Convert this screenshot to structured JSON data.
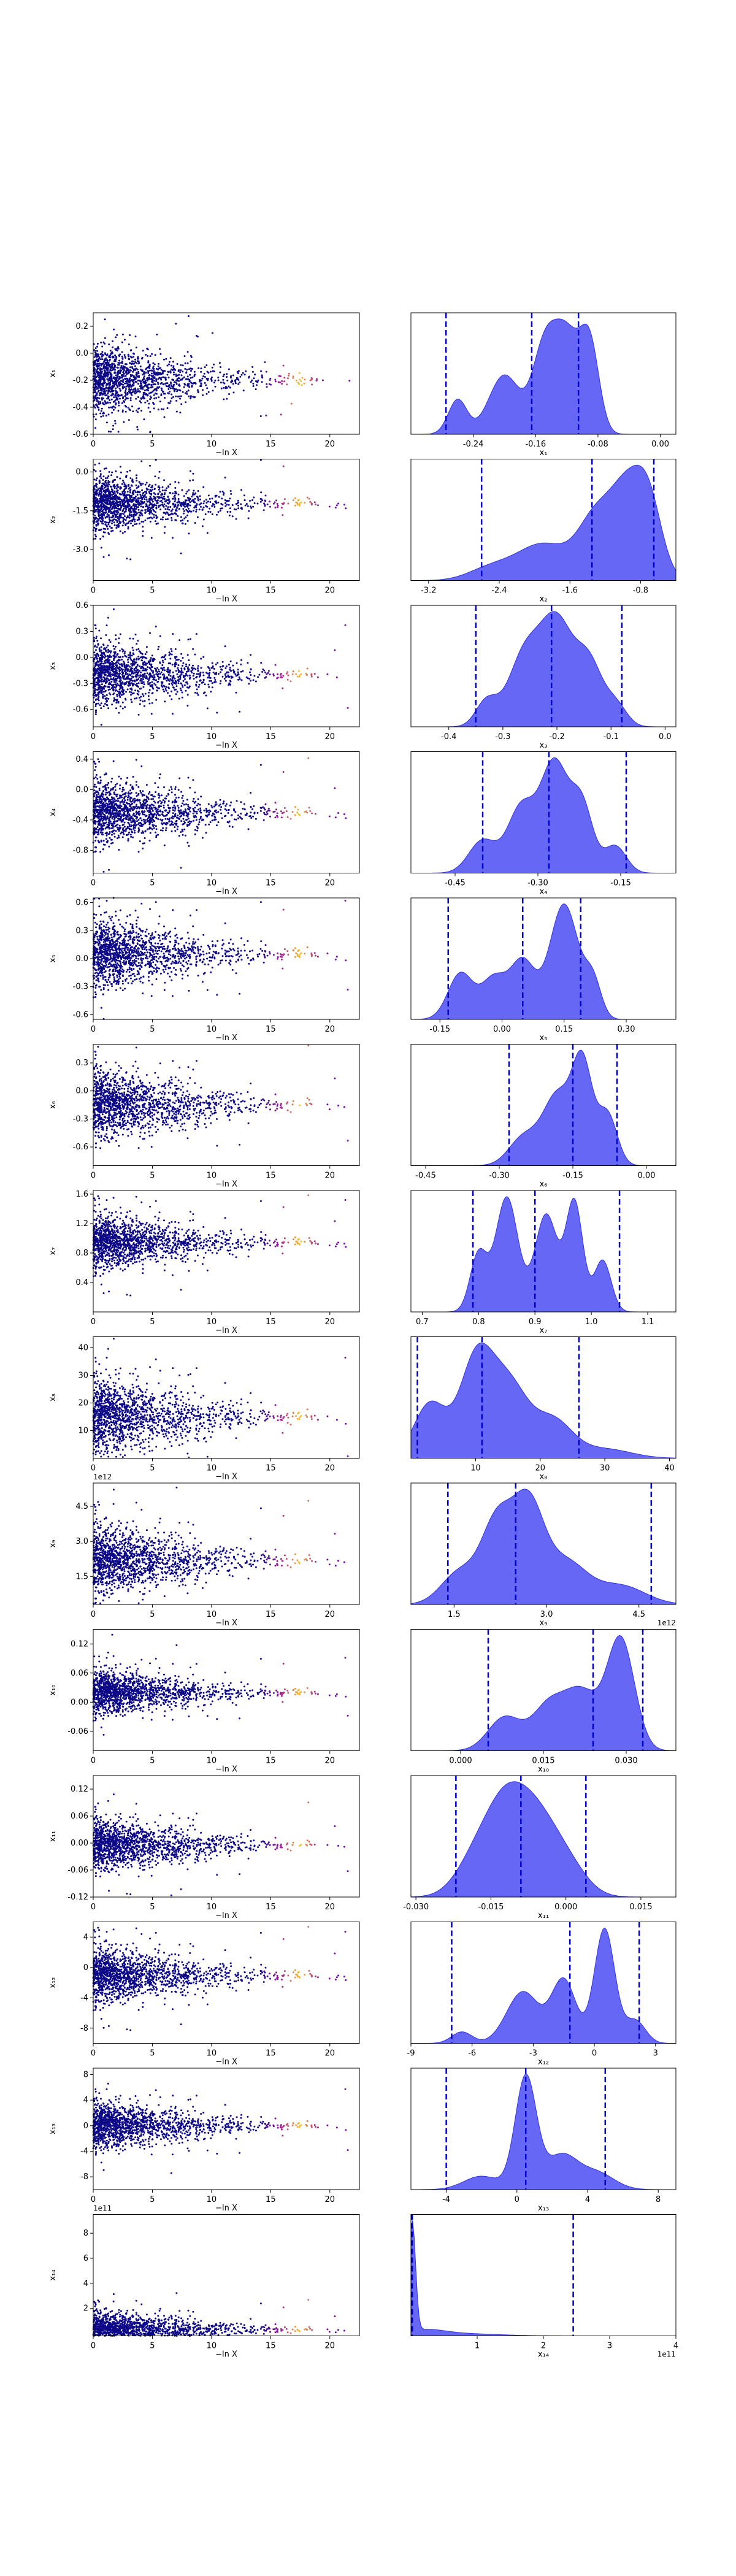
{
  "trace_xlabel": "−ln X",
  "trace_xticks": [
    0,
    5,
    10,
    15,
    20
  ],
  "trace_xlim": [
    0,
    22.5
  ],
  "colors": {
    "hist_fill": "#5a5af5",
    "hist_edge": "#3030e0",
    "quantile_line": "#0000cc",
    "scatter_low": "#0d0887",
    "scatter_mid": "#9c179e",
    "scatter_high": "#fdc527"
  },
  "chart_data": [
    {
      "type": "scatter",
      "param": "x1",
      "ylabel": "x₁",
      "ylim": [
        -0.6,
        0.3
      ],
      "yticks": [
        "0.2",
        "0.0",
        "-0.2",
        "-0.4",
        "-0.6"
      ],
      "ytick_values": [
        0.2,
        0.0,
        -0.2,
        -0.4,
        -0.6
      ],
      "center": -0.2,
      "spread": 0.28,
      "hist_xlim": [
        -0.32,
        0.02
      ],
      "hist_xticks": [
        "-0.24",
        "-0.16",
        "-0.08",
        "0.00"
      ],
      "hist_xtick_values": [
        -0.24,
        -0.16,
        -0.08,
        0.0
      ],
      "hist_xlabel": "x₁",
      "hist_offset": "",
      "trace_offset": "",
      "quantiles": [
        -0.275,
        -0.165,
        -0.105
      ],
      "peaks": [
        [
          -0.26,
          0.35,
          0.012
        ],
        [
          -0.2,
          0.6,
          0.02
        ],
        [
          -0.15,
          0.75,
          0.015
        ],
        [
          -0.12,
          1.0,
          0.018
        ],
        [
          -0.09,
          0.8,
          0.012
        ]
      ]
    },
    {
      "type": "scatter",
      "param": "x2",
      "ylabel": "x₂",
      "ylim": [
        -4.2,
        0.5
      ],
      "yticks": [
        "0.0",
        "-1.5",
        "-3.0"
      ],
      "ytick_values": [
        0.0,
        -1.5,
        -3.0
      ],
      "center": -1.2,
      "spread": 1.2,
      "hist_xlim": [
        -3.4,
        -0.4
      ],
      "hist_xticks": [
        "-3.2",
        "-2.4",
        "-1.6",
        "-0.8"
      ],
      "hist_xtick_values": [
        -3.2,
        -2.4,
        -1.6,
        -0.8
      ],
      "hist_xlabel": "x₂",
      "hist_offset": "",
      "trace_offset": "",
      "quantiles": [
        -2.6,
        -1.35,
        -0.65
      ],
      "peaks": [
        [
          -2.5,
          0.15,
          0.25
        ],
        [
          -1.9,
          0.45,
          0.3
        ],
        [
          -1.3,
          0.75,
          0.2
        ],
        [
          -0.95,
          1.0,
          0.18
        ],
        [
          -0.7,
          0.85,
          0.15
        ]
      ]
    },
    {
      "type": "scatter",
      "param": "x3",
      "ylabel": "x₃",
      "ylim": [
        -0.8,
        0.6
      ],
      "yticks": [
        "0.6",
        "0.3",
        "0.0",
        "-0.3",
        "-0.6"
      ],
      "ytick_values": [
        0.6,
        0.3,
        0.0,
        -0.3,
        -0.6
      ],
      "center": -0.2,
      "spread": 0.4,
      "hist_xlim": [
        -0.47,
        0.02
      ],
      "hist_xticks": [
        "-0.4",
        "-0.3",
        "-0.2",
        "-0.1",
        "0.0"
      ],
      "hist_xtick_values": [
        -0.4,
        -0.3,
        -0.2,
        -0.1,
        0.0
      ],
      "hist_xlabel": "x₃",
      "hist_offset": "",
      "trace_offset": "",
      "quantiles": [
        -0.35,
        -0.21,
        -0.08
      ],
      "peaks": [
        [
          -0.33,
          0.25,
          0.02
        ],
        [
          -0.26,
          0.7,
          0.03
        ],
        [
          -0.2,
          1.0,
          0.03
        ],
        [
          -0.14,
          0.6,
          0.025
        ],
        [
          -0.09,
          0.2,
          0.02
        ]
      ]
    },
    {
      "type": "scatter",
      "param": "x4",
      "ylabel": "x₄",
      "ylim": [
        -1.1,
        0.5
      ],
      "yticks": [
        "0.4",
        "0.0",
        "-0.4",
        "-0.8"
      ],
      "ytick_values": [
        0.4,
        0.0,
        -0.4,
        -0.8
      ],
      "center": -0.3,
      "spread": 0.45,
      "hist_xlim": [
        -0.53,
        -0.05
      ],
      "hist_xticks": [
        "-0.45",
        "-0.30",
        "-0.15"
      ],
      "hist_xtick_values": [
        -0.45,
        -0.3,
        -0.15
      ],
      "hist_xlabel": "x₄",
      "hist_offset": "",
      "trace_offset": "",
      "quantiles": [
        -0.4,
        -0.28,
        -0.14
      ],
      "peaks": [
        [
          -0.4,
          0.3,
          0.025
        ],
        [
          -0.33,
          0.6,
          0.025
        ],
        [
          -0.27,
          1.0,
          0.025
        ],
        [
          -0.22,
          0.6,
          0.02
        ],
        [
          -0.16,
          0.25,
          0.02
        ]
      ]
    },
    {
      "type": "scatter",
      "param": "x5",
      "ylabel": "x₅",
      "ylim": [
        -0.65,
        0.65
      ],
      "yticks": [
        "0.6",
        "0.3",
        "0.0",
        "-0.3",
        "-0.6"
      ],
      "ytick_values": [
        0.6,
        0.3,
        0.0,
        -0.3,
        -0.6
      ],
      "center": 0.05,
      "spread": 0.4,
      "hist_xlim": [
        -0.22,
        0.42
      ],
      "hist_xticks": [
        "-0.15",
        "0.00",
        "0.15",
        "0.30"
      ],
      "hist_xtick_values": [
        -0.15,
        0.0,
        0.15,
        0.3
      ],
      "hist_xlabel": "x₅",
      "hist_offset": "",
      "trace_offset": "",
      "quantiles": [
        -0.13,
        0.05,
        0.19
      ],
      "peaks": [
        [
          -0.1,
          0.4,
          0.03
        ],
        [
          -0.02,
          0.35,
          0.03
        ],
        [
          0.05,
          0.5,
          0.03
        ],
        [
          0.15,
          1.0,
          0.035
        ],
        [
          0.22,
          0.3,
          0.02
        ]
      ]
    },
    {
      "type": "scatter",
      "param": "x6",
      "ylabel": "x₆",
      "ylim": [
        -0.8,
        0.5
      ],
      "yticks": [
        "0.3",
        "0.0",
        "-0.3",
        "-0.6"
      ],
      "ytick_values": [
        0.3,
        0.0,
        -0.3,
        -0.6
      ],
      "center": -0.15,
      "spread": 0.4,
      "hist_xlim": [
        -0.48,
        0.06
      ],
      "hist_xticks": [
        "-0.45",
        "-0.30",
        "-0.15",
        "0.00"
      ],
      "hist_xtick_values": [
        -0.45,
        -0.3,
        -0.15,
        0.0
      ],
      "hist_xlabel": "x₆",
      "hist_offset": "",
      "trace_offset": "",
      "quantiles": [
        -0.28,
        -0.15,
        -0.06
      ],
      "peaks": [
        [
          -0.25,
          0.3,
          0.03
        ],
        [
          -0.18,
          0.75,
          0.03
        ],
        [
          -0.13,
          1.0,
          0.02
        ],
        [
          -0.08,
          0.55,
          0.02
        ]
      ]
    },
    {
      "type": "scatter",
      "param": "x7",
      "ylabel": "x₇",
      "ylim": [
        0.0,
        1.65
      ],
      "yticks": [
        "1.6",
        "1.2",
        "0.8",
        "0.4"
      ],
      "ytick_values": [
        1.6,
        1.2,
        0.8,
        0.4
      ],
      "center": 0.95,
      "spread": 0.4,
      "hist_xlim": [
        0.68,
        1.15
      ],
      "hist_xticks": [
        "0.7",
        "0.8",
        "0.9",
        "1.0",
        "1.1"
      ],
      "hist_xtick_values": [
        0.7,
        0.8,
        0.9,
        1.0,
        1.1
      ],
      "hist_xlabel": "x₇",
      "hist_offset": "",
      "trace_offset": "",
      "quantiles": [
        0.79,
        0.9,
        1.05
      ],
      "peaks": [
        [
          0.8,
          0.5,
          0.015
        ],
        [
          0.85,
          1.0,
          0.02
        ],
        [
          0.92,
          0.85,
          0.02
        ],
        [
          0.97,
          0.95,
          0.015
        ],
        [
          1.02,
          0.45,
          0.015
        ]
      ]
    },
    {
      "type": "scatter",
      "param": "x8",
      "ylabel": "x₈",
      "ylim": [
        0,
        44
      ],
      "yticks": [
        "40",
        "30",
        "20",
        "10"
      ],
      "ytick_values": [
        40,
        30,
        20,
        10
      ],
      "center": 15,
      "spread": 15,
      "hist_xlim": [
        0,
        41
      ],
      "hist_xticks": [
        "10",
        "20",
        "30",
        "40"
      ],
      "hist_xtick_values": [
        10,
        20,
        30,
        40
      ],
      "hist_xlabel": "x₈",
      "hist_offset": "",
      "trace_offset": "",
      "quantiles": [
        1,
        11,
        26
      ],
      "peaks": [
        [
          3,
          0.6,
          2.5
        ],
        [
          10,
          1.0,
          2.5
        ],
        [
          15,
          0.8,
          3
        ],
        [
          22,
          0.4,
          3
        ],
        [
          30,
          0.1,
          4
        ]
      ]
    },
    {
      "type": "scatter",
      "param": "x9",
      "ylabel": "x₉",
      "ylim": [
        0.3,
        5.5
      ],
      "yticks": [
        "4.5",
        "3.0",
        "1.5"
      ],
      "ytick_values": [
        4.5,
        3.0,
        1.5
      ],
      "center": 2.2,
      "spread": 1.6,
      "hist_xlim": [
        0.8,
        5.1
      ],
      "hist_xticks": [
        "1.5",
        "3.0",
        "4.5"
      ],
      "hist_xtick_values": [
        1.5,
        3.0,
        4.5
      ],
      "hist_xlabel": "x₉",
      "hist_offset": "1e12",
      "trace_offset": "1e12",
      "quantiles": [
        1.4,
        2.5,
        4.7
      ],
      "peaks": [
        [
          1.6,
          0.35,
          0.3
        ],
        [
          2.2,
          0.85,
          0.25
        ],
        [
          2.7,
          1.0,
          0.25
        ],
        [
          3.3,
          0.45,
          0.35
        ],
        [
          4.2,
          0.2,
          0.4
        ]
      ]
    },
    {
      "type": "scatter",
      "param": "x10",
      "ylabel": "x₁₀",
      "ylim": [
        -0.1,
        0.15
      ],
      "yticks": [
        "0.12",
        "0.06",
        "0.00",
        "-0.06"
      ],
      "ytick_values": [
        0.12,
        0.06,
        0.0,
        -0.06
      ],
      "center": 0.02,
      "spread": 0.05,
      "hist_xlim": [
        -0.009,
        0.039
      ],
      "hist_xticks": [
        "0.000",
        "0.015",
        "0.030"
      ],
      "hist_xtick_values": [
        0.0,
        0.015,
        0.03
      ],
      "hist_xlabel": "x₁₀",
      "hist_offset": "",
      "trace_offset": "",
      "quantiles": [
        0.005,
        0.024,
        0.033
      ],
      "peaks": [
        [
          0.008,
          0.3,
          0.003
        ],
        [
          0.016,
          0.4,
          0.003
        ],
        [
          0.022,
          0.5,
          0.003
        ],
        [
          0.029,
          1.0,
          0.0025
        ]
      ]
    },
    {
      "type": "scatter",
      "param": "x11",
      "ylabel": "x₁₁",
      "ylim": [
        -0.12,
        0.15
      ],
      "yticks": [
        "0.12",
        "0.06",
        "0.00",
        "-0.06",
        "-0.12"
      ],
      "ytick_values": [
        0.12,
        0.06,
        0.0,
        -0.06,
        -0.12
      ],
      "center": -0.005,
      "spread": 0.06,
      "hist_xlim": [
        -0.031,
        0.022
      ],
      "hist_xticks": [
        "-0.030",
        "-0.015",
        "0.000",
        "0.015"
      ],
      "hist_xtick_values": [
        -0.03,
        -0.015,
        0.0,
        0.015
      ],
      "hist_xlabel": "x₁₁",
      "hist_offset": "",
      "trace_offset": "",
      "quantiles": [
        -0.022,
        -0.009,
        0.004
      ],
      "peaks": [
        [
          -0.018,
          0.45,
          0.004
        ],
        [
          -0.012,
          1.0,
          0.004
        ],
        [
          -0.006,
          0.8,
          0.004
        ],
        [
          0.0,
          0.4,
          0.004
        ]
      ]
    },
    {
      "type": "scatter",
      "param": "x12",
      "ylabel": "x₁₂",
      "ylim": [
        -10,
        6
      ],
      "yticks": [
        "4",
        "0",
        "-4",
        "-8"
      ],
      "ytick_values": [
        4,
        0,
        -4,
        -8
      ],
      "center": -1,
      "spread": 4,
      "hist_xlim": [
        -9,
        4
      ],
      "hist_xticks": [
        "-9",
        "-6",
        "-3",
        "0",
        "3"
      ],
      "hist_xtick_values": [
        -9,
        -6,
        -3,
        0,
        3
      ],
      "hist_xlabel": "x₁₂",
      "hist_offset": "",
      "trace_offset": "",
      "quantiles": [
        -7,
        -1.2,
        2.2
      ],
      "peaks": [
        [
          -6.5,
          0.1,
          0.5
        ],
        [
          -3.5,
          0.45,
          0.8
        ],
        [
          -1.5,
          0.55,
          0.6
        ],
        [
          0.5,
          1.0,
          0.5
        ],
        [
          2.0,
          0.2,
          0.5
        ]
      ]
    },
    {
      "type": "scatter",
      "param": "x13",
      "ylabel": "x₁₃",
      "ylim": [
        -10,
        9
      ],
      "yticks": [
        "8",
        "4",
        "0",
        "-4",
        "-8"
      ],
      "ytick_values": [
        8,
        4,
        0,
        -4,
        -8
      ],
      "center": 0,
      "spread": 4,
      "hist_xlim": [
        -6,
        9
      ],
      "hist_xticks": [
        "-4",
        "0",
        "4",
        "8"
      ],
      "hist_xtick_values": [
        -4,
        0,
        4,
        8
      ],
      "hist_xlabel": "x₁₃",
      "hist_offset": "",
      "trace_offset": "",
      "quantiles": [
        -4,
        0.5,
        5
      ],
      "peaks": [
        [
          -2,
          0.12,
          1.0
        ],
        [
          0.5,
          1.0,
          0.6
        ],
        [
          2.5,
          0.3,
          0.9
        ],
        [
          4.5,
          0.15,
          1.0
        ]
      ]
    },
    {
      "type": "scatter",
      "param": "x14",
      "ylabel": "x₁₄",
      "ylim": [
        -0.2,
        9.5
      ],
      "yticks": [
        "8",
        "6",
        "4",
        "2"
      ],
      "ytick_values": [
        8,
        6,
        4,
        2
      ],
      "center": 0.3,
      "spread": 1.5,
      "hist_xlim": [
        0,
        4
      ],
      "hist_xticks": [
        "1",
        "2",
        "3",
        "4"
      ],
      "hist_xtick_values": [
        1,
        2,
        3,
        4
      ],
      "hist_xlabel": "x₁₄",
      "hist_offset": "1e11",
      "trace_offset": "1e11",
      "quantiles": [
        0.01,
        0.02,
        2.45
      ],
      "peaks": [
        [
          0.02,
          1.0,
          0.05
        ],
        [
          0.2,
          0.05,
          0.3
        ],
        [
          0.8,
          0.02,
          0.5
        ]
      ]
    }
  ]
}
